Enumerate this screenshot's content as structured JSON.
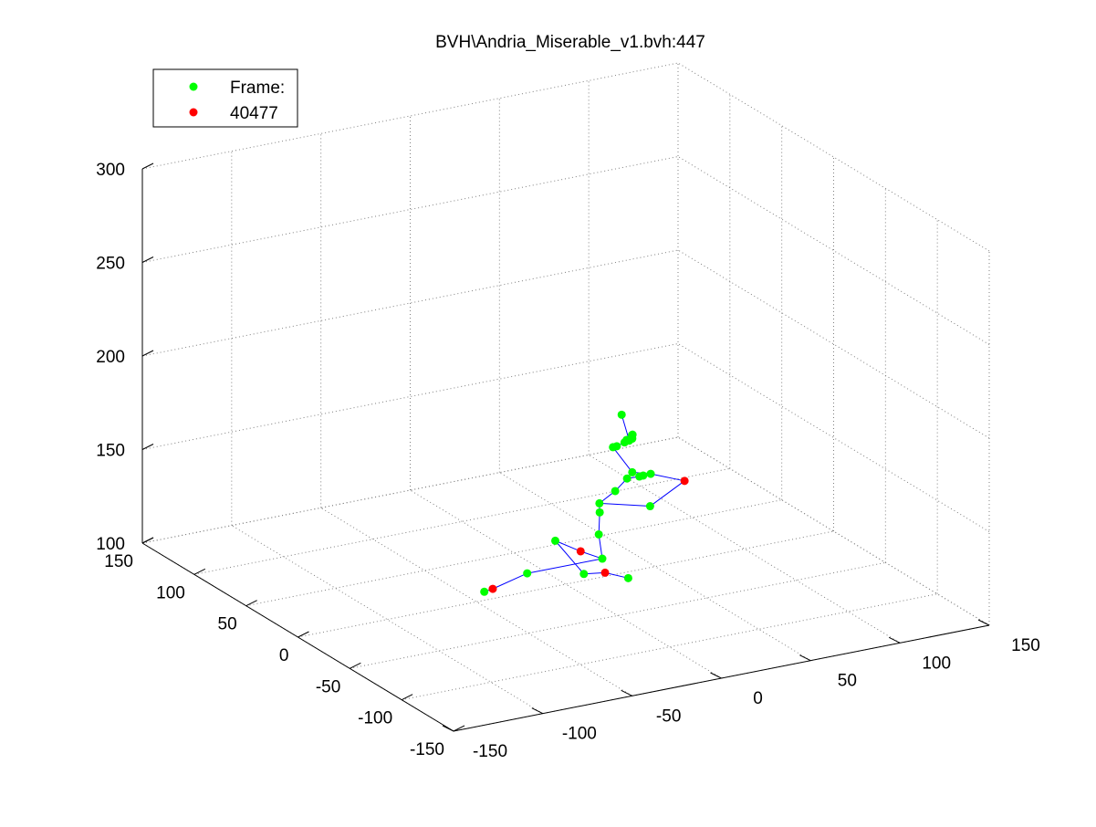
{
  "chart_data": {
    "type": "scatter",
    "title": "BVH\\Andria_Miserable_v1.bvh:447",
    "xlabel": "",
    "ylabel": "",
    "zlabel": "",
    "xlim": [
      -150,
      150
    ],
    "ylim": [
      -150,
      150
    ],
    "zlim": [
      100,
      300
    ],
    "x_ticks": [
      "-150",
      "-100",
      "-50",
      "0",
      "50",
      "100",
      "150"
    ],
    "y_ticks": [
      "-150",
      "-100",
      "-50",
      "0",
      "50",
      "100",
      "150"
    ],
    "z_ticks": [
      "100",
      "150",
      "200",
      "250",
      "300"
    ],
    "grid": true,
    "legend": {
      "placement": "top-left",
      "entries": [
        {
          "label": "Frame:",
          "color": "#00ff00"
        },
        {
          "label": "40477",
          "color": "#ff0000"
        }
      ]
    },
    "colors": {
      "joint": "#00ff00",
      "end_effector": "#ff0000",
      "bone": "#0000ff",
      "grid": "#7f7f7f"
    },
    "points": [
      {
        "id": "p0",
        "x": 40,
        "y": 15,
        "z": 178,
        "kind": "joint"
      },
      {
        "id": "p1",
        "x": 46,
        "y": 18,
        "z": 162,
        "kind": "joint"
      },
      {
        "id": "p2",
        "x": 48,
        "y": 24,
        "z": 160,
        "kind": "joint"
      },
      {
        "id": "p3",
        "x": 50,
        "y": 22,
        "z": 161,
        "kind": "joint"
      },
      {
        "id": "p4",
        "x": 49,
        "y": 20,
        "z": 164,
        "kind": "joint"
      },
      {
        "id": "p5",
        "x": 51,
        "y": 24,
        "z": 162,
        "kind": "joint"
      },
      {
        "id": "p6",
        "x": 48,
        "y": 26,
        "z": 158,
        "kind": "joint"
      },
      {
        "id": "p7",
        "x": 46,
        "y": 30,
        "z": 155,
        "kind": "joint"
      },
      {
        "id": "p8",
        "x": 45,
        "y": 32,
        "z": 154,
        "kind": "joint"
      },
      {
        "id": "p9",
        "x": 50,
        "y": 22,
        "z": 143,
        "kind": "joint"
      },
      {
        "id": "p10",
        "x": 58,
        "y": 18,
        "z": 142,
        "kind": "joint"
      },
      {
        "id": "p11",
        "x": 55,
        "y": 20,
        "z": 141,
        "kind": "joint"
      },
      {
        "id": "p12",
        "x": 54,
        "y": 22,
        "z": 140,
        "kind": "joint"
      },
      {
        "id": "p13",
        "x": 70,
        "y": 6,
        "z": 140,
        "kind": "end_effector"
      },
      {
        "id": "p14",
        "x": 50,
        "y": 27,
        "z": 138,
        "kind": "joint"
      },
      {
        "id": "p15",
        "x": 48,
        "y": 35,
        "z": 129,
        "kind": "joint"
      },
      {
        "id": "p16",
        "x": 60,
        "y": 22,
        "z": 123,
        "kind": "joint"
      },
      {
        "id": "p17",
        "x": 38,
        "y": 33,
        "z": 125,
        "kind": "joint"
      },
      {
        "id": "p18",
        "x": 37,
        "y": 31,
        "z": 121,
        "kind": "joint"
      },
      {
        "id": "p19",
        "x": 33,
        "y": 25,
        "z": 112,
        "kind": "joint"
      },
      {
        "id": "p20",
        "x": 28,
        "y": 13,
        "z": 104,
        "kind": "joint"
      },
      {
        "id": "p21",
        "x": 24,
        "y": 27,
        "z": 104,
        "kind": "end_effector"
      },
      {
        "id": "p22",
        "x": 22,
        "y": 48,
        "z": 103,
        "kind": "joint"
      },
      {
        "id": "p23",
        "x": 20,
        "y": 17,
        "z": 96,
        "kind": "joint"
      },
      {
        "id": "p24",
        "x": -10,
        "y": 20,
        "z": 101,
        "kind": "joint"
      },
      {
        "id": "p25",
        "x": 22,
        "y": 0,
        "z": 102,
        "kind": "end_effector"
      },
      {
        "id": "p26",
        "x": 28,
        "y": -12,
        "z": 102,
        "kind": "joint"
      },
      {
        "id": "p27",
        "x": -38,
        "y": 5,
        "z": 103,
        "kind": "end_effector"
      },
      {
        "id": "p28",
        "x": -41,
        "y": 8,
        "z": 101,
        "kind": "joint"
      }
    ],
    "bones": [
      [
        "p0",
        "p1"
      ],
      [
        "p1",
        "p4"
      ],
      [
        "p4",
        "p2"
      ],
      [
        "p2",
        "p3"
      ],
      [
        "p3",
        "p5"
      ],
      [
        "p5",
        "p6"
      ],
      [
        "p6",
        "p7"
      ],
      [
        "p7",
        "p8"
      ],
      [
        "p8",
        "p9"
      ],
      [
        "p9",
        "p10"
      ],
      [
        "p10",
        "p11"
      ],
      [
        "p11",
        "p12"
      ],
      [
        "p10",
        "p13"
      ],
      [
        "p12",
        "p14"
      ],
      [
        "p13",
        "p16"
      ],
      [
        "p14",
        "p15"
      ],
      [
        "p15",
        "p17"
      ],
      [
        "p16",
        "p17"
      ],
      [
        "p17",
        "p18"
      ],
      [
        "p18",
        "p19"
      ],
      [
        "p19",
        "p20"
      ],
      [
        "p20",
        "p21"
      ],
      [
        "p21",
        "p22"
      ],
      [
        "p22",
        "p23"
      ],
      [
        "p23",
        "p25"
      ],
      [
        "p25",
        "p26"
      ],
      [
        "p20",
        "p24"
      ],
      [
        "p24",
        "p27"
      ],
      [
        "p27",
        "p28"
      ]
    ]
  }
}
